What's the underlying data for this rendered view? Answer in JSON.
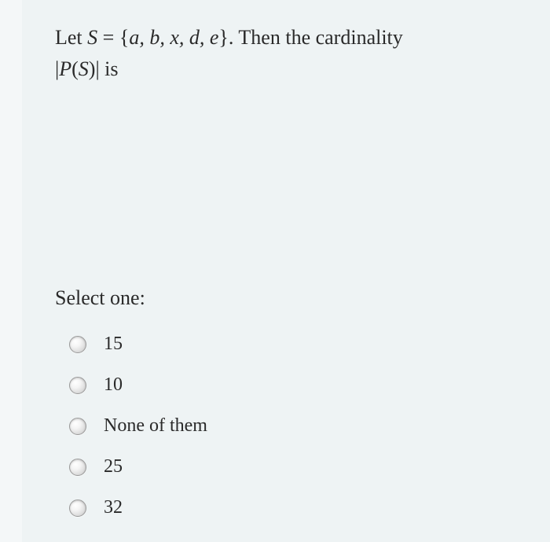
{
  "background_color": "#eef3f4",
  "leftbar_color": "#f4f7f8",
  "text_color": "#2a2a2a",
  "question": {
    "line1_prefix": "Let ",
    "set_var": "S",
    "equals": " = ",
    "set_open": "{",
    "set_elems": "a, b, x, d, e",
    "set_close": "}",
    "line1_suffix": ". Then the cardinality",
    "line2_bar_open": "|",
    "line2_P": "P",
    "line2_paren_open": "(",
    "line2_S": "S",
    "line2_paren_close": ")",
    "line2_bar_close": "|",
    "line2_suffix": "  is",
    "font_size": 26
  },
  "prompt": "Select one:",
  "options": [
    {
      "label": "15",
      "selected": false
    },
    {
      "label": "10",
      "selected": false
    },
    {
      "label": "None of them",
      "selected": false
    },
    {
      "label": "25",
      "selected": false
    },
    {
      "label": "32",
      "selected": false
    }
  ],
  "radio_style": {
    "size": 22,
    "border_color": "#9a9a9a"
  }
}
